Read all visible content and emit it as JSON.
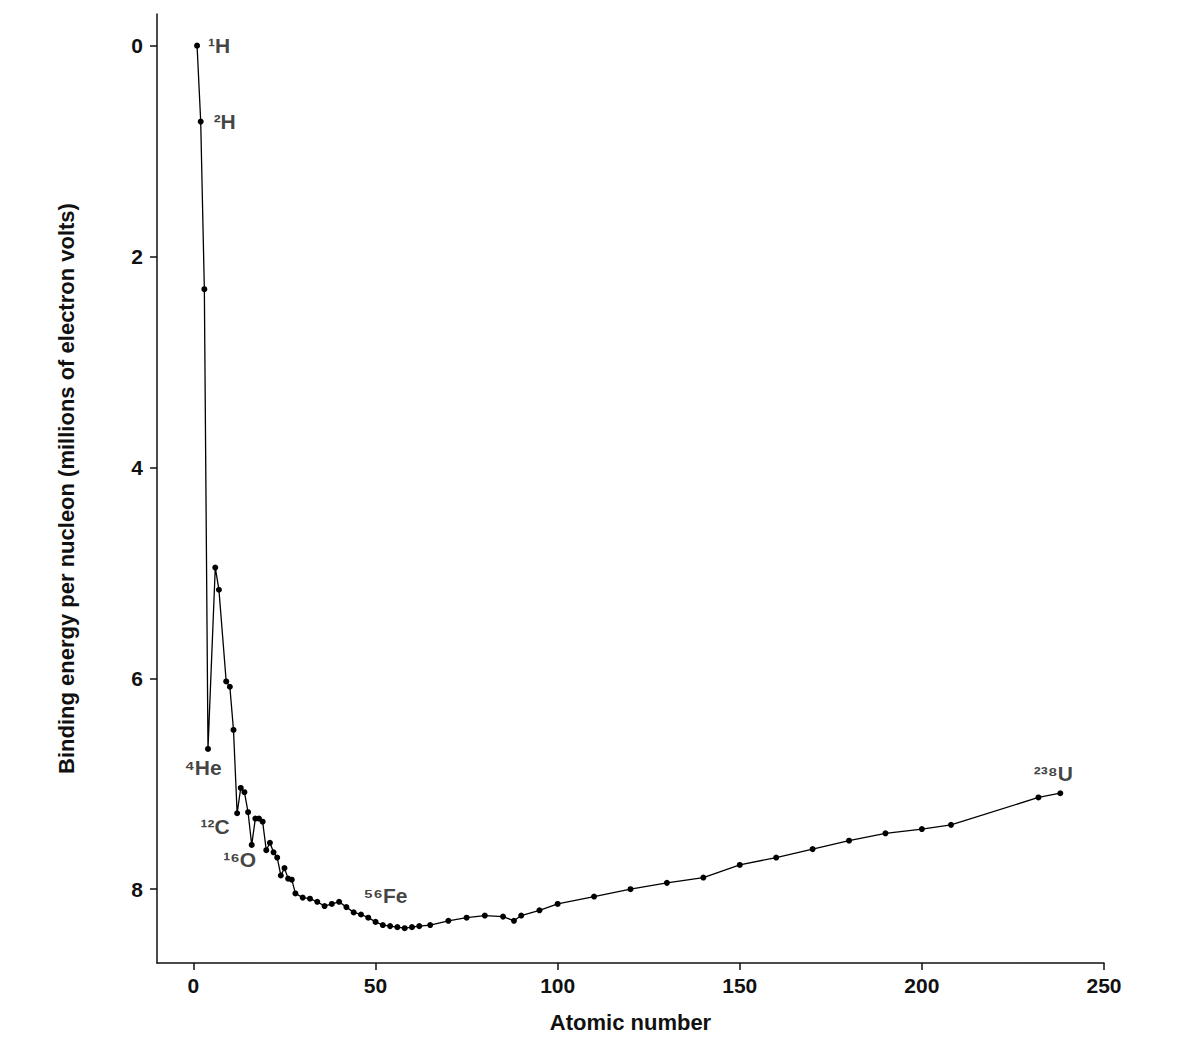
{
  "chart_data": {
    "type": "line",
    "x_label": "Atomic number",
    "y_label": "Binding energy per nucleon (millions of electron volts)",
    "color": "#000000",
    "marker": "circle",
    "grid": false,
    "xlim": [
      -10,
      250
    ],
    "ylim": [
      8.7,
      -0.3
    ],
    "xticks": [
      0,
      50,
      100,
      150,
      200,
      250
    ],
    "yticks": [
      0,
      2,
      4,
      6,
      8
    ],
    "x": [
      1,
      2,
      3,
      4,
      6,
      7,
      9,
      10,
      11,
      12,
      13,
      14,
      15,
      16,
      17,
      18,
      19,
      20,
      21,
      22,
      23,
      24,
      25,
      26,
      27,
      28,
      30,
      32,
      34,
      36,
      38,
      40,
      42,
      44,
      46,
      48,
      50,
      52,
      54,
      56,
      58,
      60,
      62,
      65,
      70,
      75,
      80,
      85,
      88,
      90,
      95,
      100,
      110,
      120,
      130,
      140,
      150,
      160,
      170,
      180,
      190,
      200,
      208,
      232,
      238
    ],
    "values": [
      0,
      0.72,
      2.31,
      6.67,
      4.95,
      5.16,
      6.03,
      6.08,
      6.49,
      7.28,
      7.04,
      7.08,
      7.27,
      7.58,
      7.33,
      7.33,
      7.36,
      7.63,
      7.56,
      7.65,
      7.7,
      7.87,
      7.8,
      7.9,
      7.91,
      8.04,
      8.08,
      8.09,
      8.12,
      8.16,
      8.14,
      8.12,
      8.17,
      8.22,
      8.24,
      8.27,
      8.31,
      8.34,
      8.35,
      8.36,
      8.37,
      8.36,
      8.35,
      8.34,
      8.3,
      8.27,
      8.25,
      8.26,
      8.3,
      8.25,
      8.2,
      8.14,
      8.07,
      8.0,
      7.94,
      7.89,
      7.77,
      7.7,
      7.62,
      7.54,
      7.47,
      7.43,
      7.39,
      7.13,
      7.09
    ],
    "annotations": [
      {
        "text": "¹H",
        "x": 1,
        "y": 0
      },
      {
        "text": "²H",
        "x": 2,
        "y": 0.72
      },
      {
        "text": "⁴He",
        "x": 4,
        "y": 6.67
      },
      {
        "text": "¹²C",
        "x": 12,
        "y": 7.28
      },
      {
        "text": "¹⁶O",
        "x": 16,
        "y": 7.58
      },
      {
        "text": "⁵⁶Fe",
        "x": 56,
        "y": 8.36
      },
      {
        "text": "²³⁸U",
        "x": 238,
        "y": 7.09
      }
    ]
  }
}
